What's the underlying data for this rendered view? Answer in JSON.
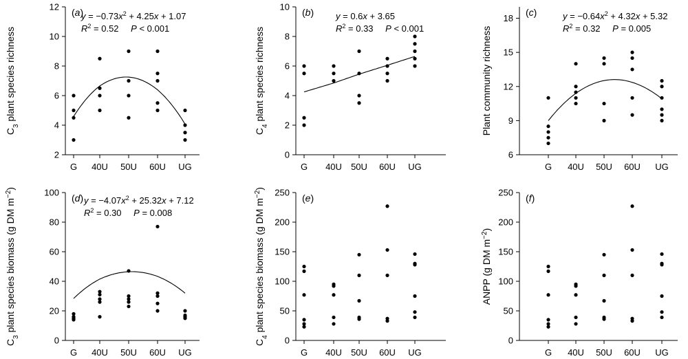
{
  "figure": {
    "x_categories": [
      "G",
      "40U",
      "50U",
      "60U",
      "UG"
    ]
  },
  "chart_data": [
    {
      "panel": "(a)",
      "type": "scatter",
      "ylabel": "C3 plant species richness",
      "ylabel_main": "C",
      "ylabel_sub": "3",
      "ylabel_rest": " plant species richness",
      "categories": [
        "G",
        "40U",
        "50U",
        "60U",
        "UG"
      ],
      "ylim": [
        2,
        12
      ],
      "yticks": [
        2,
        4,
        6,
        8,
        10,
        12
      ],
      "points": [
        [
          1,
          6
        ],
        [
          1,
          5
        ],
        [
          1,
          4.5
        ],
        [
          1,
          3
        ],
        [
          2,
          8.5
        ],
        [
          2,
          6.5
        ],
        [
          2,
          6
        ],
        [
          2,
          5
        ],
        [
          3,
          9
        ],
        [
          3,
          7
        ],
        [
          3,
          6
        ],
        [
          3,
          4.5
        ],
        [
          4,
          9
        ],
        [
          4,
          7.5
        ],
        [
          4,
          7
        ],
        [
          4,
          5.5
        ],
        [
          4,
          5
        ],
        [
          5,
          5
        ],
        [
          5,
          4
        ],
        [
          5,
          3.5
        ],
        [
          5,
          3
        ]
      ],
      "fit": {
        "kind": "quadratic",
        "coeffs": [
          1.07,
          4.25,
          -0.73
        ]
      },
      "equation": "y = −0.73x² + 4.25x + 1.07",
      "r2": "R² = 0.52",
      "p": "P < 0.001"
    },
    {
      "panel": "(b)",
      "type": "scatter",
      "ylabel": "C4 plant species richness",
      "ylabel_main": "C",
      "ylabel_sub": "4",
      "ylabel_rest": " plant species richness",
      "categories": [
        "G",
        "40U",
        "50U",
        "60U",
        "UG"
      ],
      "ylim": [
        0,
        10
      ],
      "yticks": [
        0,
        2,
        4,
        6,
        8,
        10
      ],
      "points": [
        [
          1,
          6
        ],
        [
          1,
          5.5
        ],
        [
          1,
          2.5
        ],
        [
          1,
          2
        ],
        [
          2,
          6
        ],
        [
          2,
          5.5
        ],
        [
          2,
          5
        ],
        [
          3,
          7
        ],
        [
          3,
          5.5
        ],
        [
          3,
          4
        ],
        [
          3,
          3.5
        ],
        [
          4,
          6.5
        ],
        [
          4,
          6
        ],
        [
          4,
          5.5
        ],
        [
          4,
          5
        ],
        [
          5,
          8
        ],
        [
          5,
          7.5
        ],
        [
          5,
          7
        ],
        [
          5,
          6.5
        ],
        [
          5,
          6
        ]
      ],
      "fit": {
        "kind": "linear",
        "coeffs": [
          3.65,
          0.6
        ]
      },
      "equation": "y = 0.6x + 3.65",
      "r2": "R² = 0.33",
      "p": "P < 0.001"
    },
    {
      "panel": "(c)",
      "type": "scatter",
      "ylabel": "Plant community richness",
      "ylabel_main": "Plant community richness",
      "ylabel_sub": "",
      "ylabel_rest": "",
      "categories": [
        "G",
        "40U",
        "50U",
        "60U",
        "UG"
      ],
      "ylim": [
        6,
        19
      ],
      "yticks": [
        6,
        9,
        12,
        15,
        18
      ],
      "points": [
        [
          1,
          11
        ],
        [
          1,
          8.5
        ],
        [
          1,
          8
        ],
        [
          1,
          7.5
        ],
        [
          1,
          7
        ],
        [
          2,
          14
        ],
        [
          2,
          12
        ],
        [
          2,
          11.5
        ],
        [
          2,
          11
        ],
        [
          2,
          10.5
        ],
        [
          3,
          14.5
        ],
        [
          3,
          14
        ],
        [
          3,
          10.5
        ],
        [
          3,
          9
        ],
        [
          4,
          15
        ],
        [
          4,
          14.5
        ],
        [
          4,
          13.5
        ],
        [
          4,
          11
        ],
        [
          4,
          9.5
        ],
        [
          5,
          12.5
        ],
        [
          5,
          12
        ],
        [
          5,
          11
        ],
        [
          5,
          10
        ],
        [
          5,
          9.5
        ],
        [
          5,
          9
        ]
      ],
      "fit": {
        "kind": "quadratic",
        "coeffs": [
          5.32,
          4.32,
          -0.64
        ]
      },
      "equation": "y = −0.64x² + 4.32x + 5.32",
      "r2": "R² = 0.32",
      "p": "P = 0.005"
    },
    {
      "panel": "(d)",
      "type": "scatter",
      "ylabel": "C3 plant species biomass (g DM m−2)",
      "ylabel_main": "C",
      "ylabel_sub": "3",
      "ylabel_rest": " plant species biomass (g DM m",
      "ylabel_sup": "−2",
      "ylabel_end": ")",
      "categories": [
        "G",
        "40U",
        "50U",
        "60U",
        "UG"
      ],
      "ylim": [
        0,
        100
      ],
      "yticks": [
        0,
        20,
        40,
        60,
        80,
        100
      ],
      "points": [
        [
          1,
          18
        ],
        [
          1,
          16
        ],
        [
          1,
          15
        ],
        [
          1,
          14
        ],
        [
          2,
          33
        ],
        [
          2,
          31
        ],
        [
          2,
          28
        ],
        [
          2,
          26
        ],
        [
          2,
          16
        ],
        [
          3,
          47
        ],
        [
          3,
          30
        ],
        [
          3,
          28
        ],
        [
          3,
          26
        ],
        [
          3,
          23
        ],
        [
          4,
          77
        ],
        [
          4,
          32
        ],
        [
          4,
          30
        ],
        [
          4,
          25
        ],
        [
          4,
          20
        ],
        [
          5,
          20
        ],
        [
          5,
          17
        ],
        [
          5,
          16
        ],
        [
          5,
          15
        ]
      ],
      "fit": {
        "kind": "quadratic",
        "coeffs": [
          7.12,
          25.32,
          -4.07
        ]
      },
      "equation": "y = −4.07x² + 25.32x + 7.12",
      "r2": "R² = 0.30",
      "p": "P = 0.008"
    },
    {
      "panel": "(e)",
      "type": "scatter",
      "ylabel": "C4 plant species biomass (g DM m−2)",
      "ylabel_main": "C",
      "ylabel_sub": "4",
      "ylabel_rest": " plant species biomass (g DM m",
      "ylabel_sup": "−2",
      "ylabel_end": ")",
      "categories": [
        "G",
        "40U",
        "50U",
        "60U",
        "UG"
      ],
      "ylim": [
        0,
        250
      ],
      "yticks": [
        0,
        50,
        100,
        150,
        200,
        250
      ],
      "points": [
        [
          1,
          125
        ],
        [
          1,
          117
        ],
        [
          1,
          77
        ],
        [
          1,
          35
        ],
        [
          1,
          28
        ],
        [
          1,
          23
        ],
        [
          2,
          95
        ],
        [
          2,
          92
        ],
        [
          2,
          77
        ],
        [
          2,
          39
        ],
        [
          2,
          28
        ],
        [
          3,
          145
        ],
        [
          3,
          110
        ],
        [
          3,
          67
        ],
        [
          3,
          39
        ],
        [
          3,
          36
        ],
        [
          4,
          227
        ],
        [
          4,
          153
        ],
        [
          4,
          110
        ],
        [
          4,
          37
        ],
        [
          4,
          33
        ],
        [
          5,
          146
        ],
        [
          5,
          130
        ],
        [
          5,
          128
        ],
        [
          5,
          75
        ],
        [
          5,
          48
        ],
        [
          5,
          39
        ]
      ],
      "equation": "",
      "r2": "",
      "p": ""
    },
    {
      "panel": "(f)",
      "type": "scatter",
      "ylabel": "ANPP (g DM m−2)",
      "ylabel_main": "ANPP (g DM m",
      "ylabel_sub": "",
      "ylabel_rest": "",
      "ylabel_sup": "−2",
      "ylabel_end": ")",
      "categories": [
        "G",
        "40U",
        "50U",
        "60U",
        "UG"
      ],
      "ylim": [
        0,
        250
      ],
      "yticks": [
        0,
        50,
        100,
        150,
        200,
        250
      ],
      "points": [
        [
          1,
          125
        ],
        [
          1,
          117
        ],
        [
          1,
          77
        ],
        [
          1,
          35
        ],
        [
          1,
          28
        ],
        [
          1,
          23
        ],
        [
          2,
          95
        ],
        [
          2,
          92
        ],
        [
          2,
          77
        ],
        [
          2,
          39
        ],
        [
          2,
          28
        ],
        [
          3,
          145
        ],
        [
          3,
          110
        ],
        [
          3,
          67
        ],
        [
          3,
          39
        ],
        [
          3,
          36
        ],
        [
          4,
          227
        ],
        [
          4,
          153
        ],
        [
          4,
          110
        ],
        [
          4,
          37
        ],
        [
          4,
          33
        ],
        [
          5,
          146
        ],
        [
          5,
          130
        ],
        [
          5,
          128
        ],
        [
          5,
          75
        ],
        [
          5,
          48
        ],
        [
          5,
          39
        ]
      ],
      "equation": "",
      "r2": "",
      "p": ""
    }
  ]
}
